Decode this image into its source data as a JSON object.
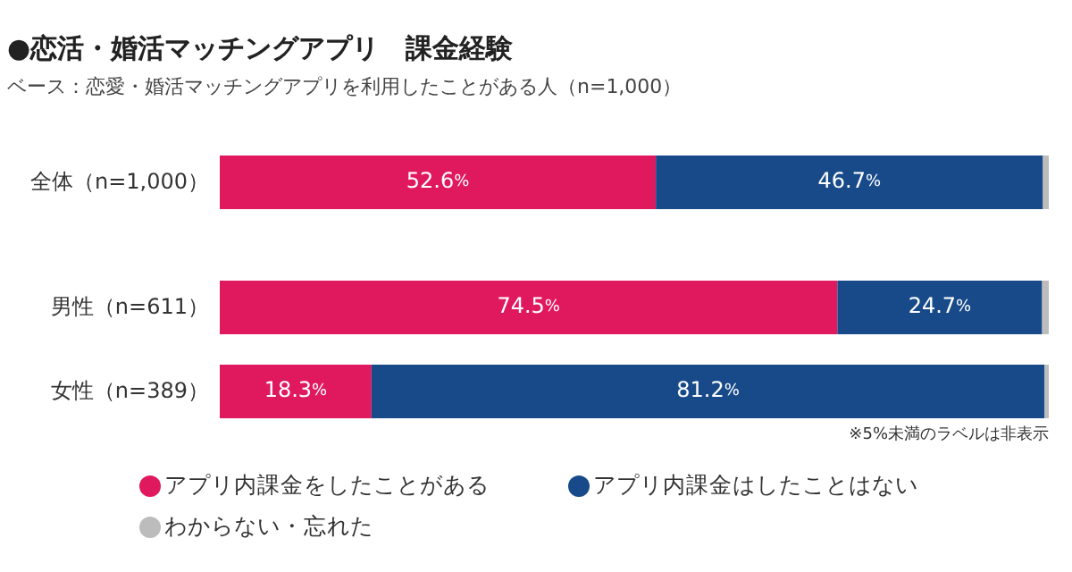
{
  "chart_data": {
    "type": "bar",
    "orientation": "horizontal",
    "stacked": true,
    "title": "●恋活・婚活マッチングアプリ　課金経験",
    "subtitle": "ベース：恋愛・婚活マッチングアプリを利用したことがある人（n=1,000）",
    "annotations": [
      "※5%未満のラベルは非表示"
    ],
    "categories": [
      "全体（n=1,000）",
      "男性（n=611）",
      "女性（n=389）"
    ],
    "xlim": [
      0,
      100
    ],
    "legend": "bottom",
    "series": [
      {
        "name": "アプリ内課金をしたことがある",
        "color": "#e0185e",
        "values": [
          52.6,
          74.5,
          18.3
        ],
        "value_labels": [
          "52.6%",
          "74.5%",
          "18.3%"
        ]
      },
      {
        "name": "アプリ内課金はしたことはない",
        "color": "#184a8a",
        "values": [
          46.7,
          24.7,
          81.2
        ],
        "value_labels": [
          "46.7%",
          "24.7%",
          "81.2%"
        ]
      },
      {
        "name": "わからない・忘れた",
        "color": "#bcbcbc",
        "values": [
          0.7,
          0.8,
          0.5
        ],
        "value_labels": [
          null,
          null,
          null
        ]
      }
    ]
  }
}
